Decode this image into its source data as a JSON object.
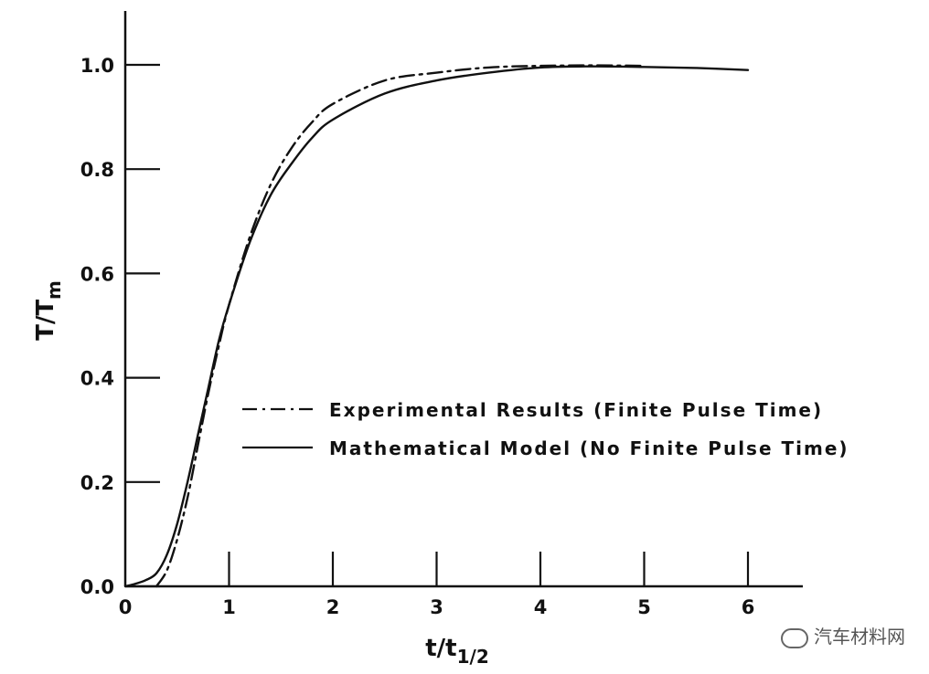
{
  "chart_data": {
    "type": "line",
    "title": "",
    "xlabel": {
      "main": "t/t",
      "subscript": "1/2"
    },
    "ylabel": {
      "main": "T/T",
      "subscript": "m"
    },
    "xlim": [
      0,
      6.5
    ],
    "ylim": [
      0,
      1.1
    ],
    "x_ticks": [
      0,
      1,
      2,
      3,
      4,
      5,
      6
    ],
    "x_tick_labels": [
      "0",
      "1",
      "2",
      "3",
      "4",
      "5",
      "6"
    ],
    "y_ticks": [
      0.0,
      0.2,
      0.4,
      0.6,
      0.8,
      1.0
    ],
    "y_tick_labels": [
      "0.0",
      "0.2",
      "0.4",
      "0.6",
      "0.8",
      "1.0"
    ],
    "grid": false,
    "legend_position": "center-right",
    "series": [
      {
        "name": "Experimental Results (Finite Pulse Time)",
        "style": "dash-dot",
        "color": "#111111",
        "x": [
          0.3,
          0.4,
          0.5,
          0.6,
          0.7,
          0.8,
          0.9,
          1.0,
          1.2,
          1.4,
          1.6,
          1.8,
          2.0,
          2.5,
          3.0,
          3.5,
          4.0,
          4.5,
          5.0
        ],
        "y": [
          0.0,
          0.03,
          0.09,
          0.17,
          0.27,
          0.37,
          0.46,
          0.54,
          0.67,
          0.77,
          0.84,
          0.89,
          0.925,
          0.97,
          0.985,
          0.995,
          0.998,
          0.999,
          0.998
        ]
      },
      {
        "name": "Mathematical Model (No Finite Pulse Time)",
        "style": "solid",
        "color": "#111111",
        "x": [
          0.0,
          0.1,
          0.2,
          0.3,
          0.4,
          0.5,
          0.6,
          0.7,
          0.8,
          0.9,
          1.0,
          1.2,
          1.4,
          1.6,
          1.8,
          2.0,
          2.5,
          3.0,
          3.5,
          4.0,
          4.5,
          5.0,
          5.5,
          6.0
        ],
        "y": [
          0.0,
          0.005,
          0.012,
          0.025,
          0.06,
          0.12,
          0.2,
          0.29,
          0.38,
          0.47,
          0.54,
          0.66,
          0.75,
          0.81,
          0.86,
          0.895,
          0.945,
          0.97,
          0.985,
          0.995,
          0.997,
          0.996,
          0.994,
          0.99
        ]
      }
    ]
  },
  "watermark": "汽车材料网"
}
